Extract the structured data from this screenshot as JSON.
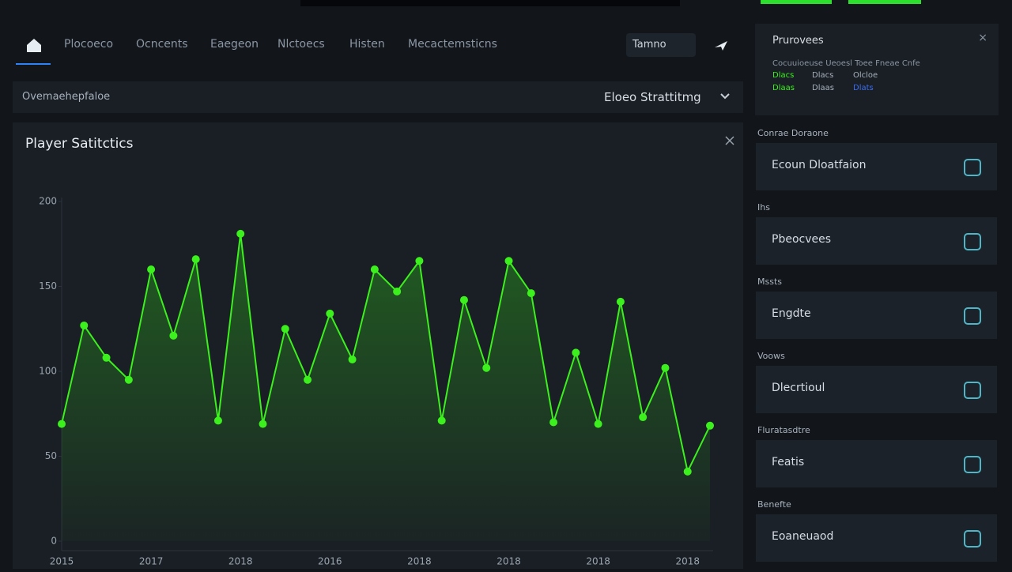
{
  "nav": {
    "items": [
      "Plocoeco",
      "Ocncents",
      "Eaegeon",
      "Nlctoecs",
      "Histen",
      "Mecactemsticns"
    ],
    "dropdown": "Tamno"
  },
  "filter": {
    "label": "Ovemaehepfaloe",
    "select": "Eloeo Strattitmg"
  },
  "chart_data": {
    "type": "line",
    "title": "Player Satitctics",
    "categories": [
      "2015",
      null,
      null,
      null,
      "2017",
      null,
      null,
      null,
      "2018",
      null,
      null,
      null,
      "2016",
      null,
      null,
      null,
      "2018",
      null,
      null,
      null,
      "2018",
      null,
      null,
      null,
      "2018",
      null,
      null,
      null,
      "2018",
      null
    ],
    "series": [
      {
        "color": "#3cf01e",
        "values": [
          69,
          127,
          108,
          95,
          160,
          121,
          166,
          71,
          181,
          69,
          125,
          95,
          134,
          107,
          160,
          147,
          165,
          71,
          142,
          102,
          165,
          146,
          70,
          111,
          69,
          141,
          73,
          102,
          41,
          68
        ]
      }
    ],
    "ylim": [
      0,
      200
    ],
    "yticks": [
      0,
      50,
      100,
      150,
      200
    ],
    "grid": false
  },
  "panel": {
    "title": "Prurovees",
    "line": "Cocuuioeuse Ueoesl Toee Fneae Cnfe",
    "row1": [
      "Dlacs",
      "Dlacs",
      "Olcloe"
    ],
    "row2": [
      "Dlaas",
      "Dlaas",
      "Dlats"
    ]
  },
  "sections": [
    {
      "label": "Conrae Doraone",
      "card": "Ecoun Dloatfaion"
    },
    {
      "label": "Ihs",
      "card": "Pbeocvees"
    },
    {
      "label": "Mssts",
      "card": "Engdte"
    },
    {
      "label": "Voows",
      "card": "Dlecrtioul"
    },
    {
      "label": "Fluratasdtre",
      "card": "Featis"
    },
    {
      "label": "Benefte",
      "card": "Eoaneuaod"
    }
  ]
}
